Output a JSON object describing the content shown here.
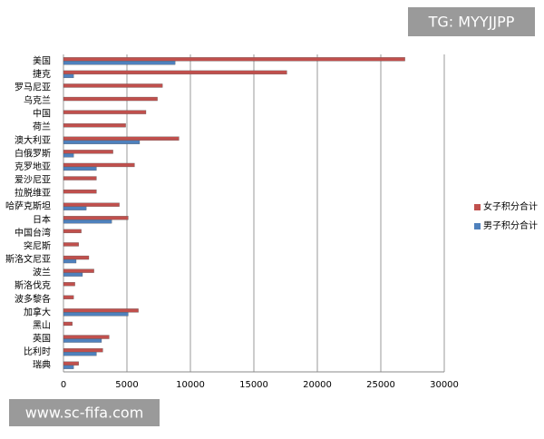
{
  "chart_data": {
    "type": "hbar",
    "categories": [
      "美国",
      "捷克",
      "罗马尼亚",
      "乌克兰",
      "中国",
      "荷兰",
      "澳大利亚",
      "白俄罗斯",
      "克罗地亚",
      "爱沙尼亚",
      "拉脱维亚",
      "哈萨克斯坦",
      "日本",
      "中国台湾",
      "突尼斯",
      "斯洛文尼亚",
      "波兰",
      "斯洛伐克",
      "波多黎各",
      "加拿大",
      "黑山",
      "英国",
      "比利时",
      "瑞典"
    ],
    "series": [
      {
        "name": "女子积分合计",
        "color": "#c0504d",
        "values": [
          26900,
          17600,
          7800,
          7400,
          6500,
          4900,
          9100,
          3900,
          5600,
          2600,
          2600,
          4400,
          5100,
          1400,
          1200,
          2000,
          2400,
          900,
          800,
          5900,
          700,
          3600,
          3100,
          1200
        ]
      },
      {
        "name": "男子积分合计",
        "color": "#4f81bd",
        "values": [
          8800,
          800,
          0,
          0,
          0,
          0,
          6000,
          800,
          2600,
          0,
          0,
          1800,
          3800,
          0,
          0,
          1000,
          1500,
          0,
          0,
          5100,
          0,
          3000,
          2600,
          800
        ]
      }
    ],
    "xlim": [
      0,
      30000
    ],
    "xticks": [
      0,
      5000,
      10000,
      15000,
      20000,
      25000,
      30000
    ],
    "grid": true,
    "legend": "right",
    "annotations": [
      "TG: MYYJJPP",
      "www.sc-fifa.com"
    ]
  }
}
